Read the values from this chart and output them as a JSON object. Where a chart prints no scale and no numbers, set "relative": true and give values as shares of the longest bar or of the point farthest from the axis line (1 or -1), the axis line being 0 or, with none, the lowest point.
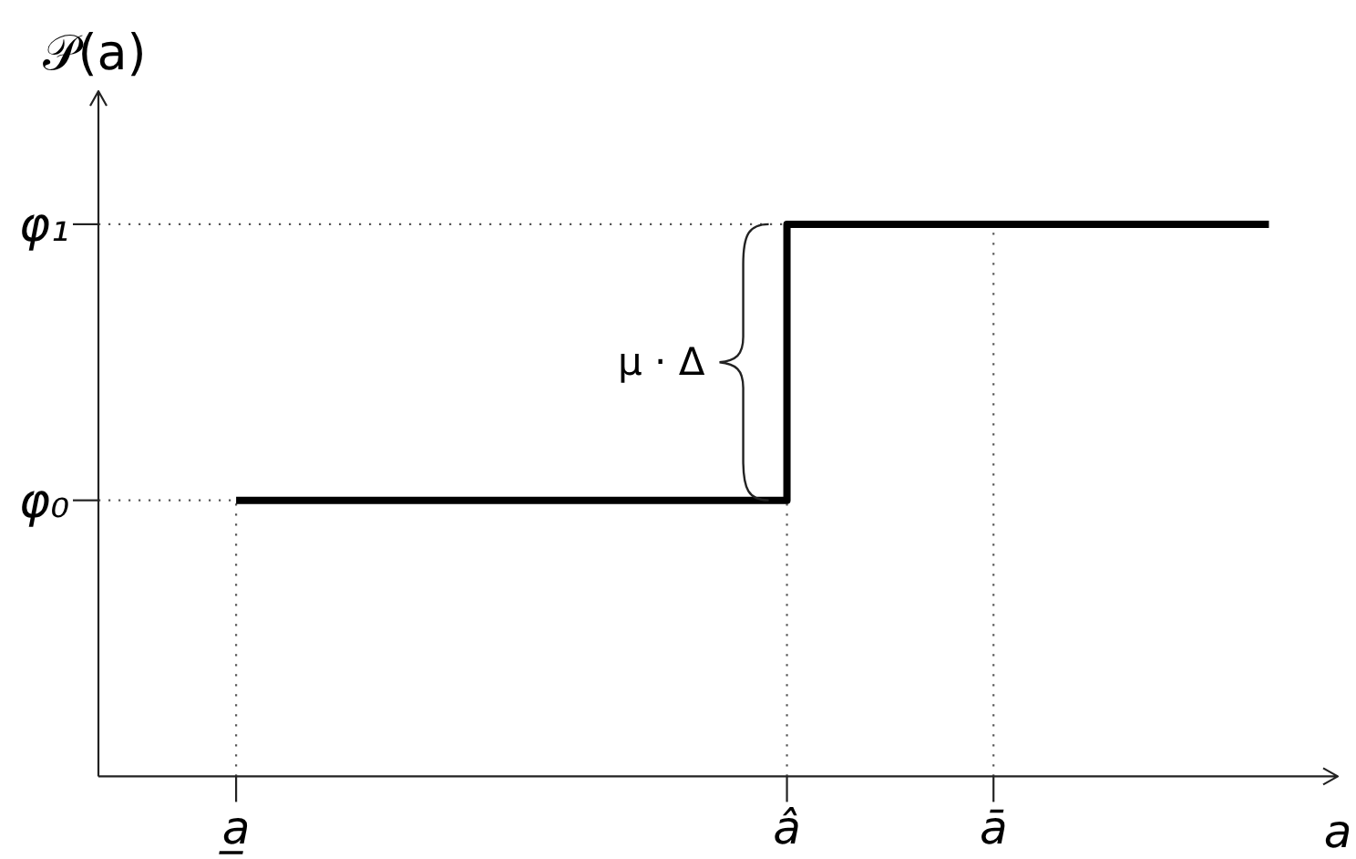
{
  "chart_data": {
    "type": "step",
    "relative": true,
    "ylabel": "𝒫(a)",
    "xlabel": "a",
    "categories": [
      "a̲",
      null,
      null,
      null,
      null,
      null,
      null,
      null,
      "â",
      null,
      null,
      "ā",
      null,
      null,
      null,
      null
    ],
    "series": [
      {
        "color": "#000000",
        "values": [
          0.5,
          0.5,
          0.5,
          0.5,
          0.5,
          0.5,
          0.5,
          0.5,
          1,
          1,
          1,
          1,
          1,
          1,
          1,
          1
        ]
      }
    ],
    "ref_lines": [
      {
        "axis": "y",
        "value": 0.5,
        "label": "φ₀",
        "line_style": "dotted",
        "color": "#555555"
      },
      {
        "axis": "y",
        "value": 1,
        "label": "φ₁",
        "line_style": "dotted",
        "color": "#555555"
      },
      {
        "axis": "x",
        "value": "a̲",
        "line_style": "dotted",
        "color": "#555555"
      },
      {
        "axis": "x",
        "value": "â",
        "line_style": "dotted",
        "color": "#555555"
      },
      {
        "axis": "x",
        "value": "ā",
        "line_style": "dotted",
        "color": "#555555"
      }
    ],
    "annotations": [
      "μ · Δ"
    ]
  }
}
